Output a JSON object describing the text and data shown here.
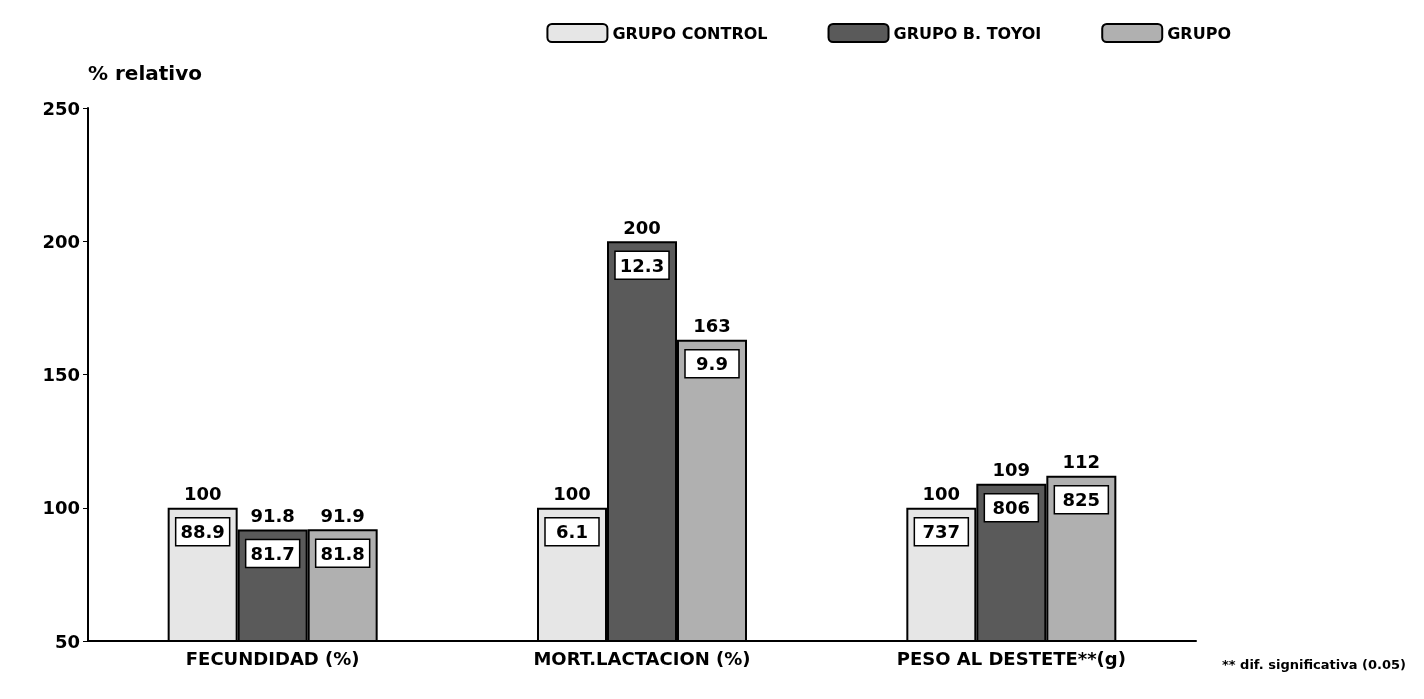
{
  "chart_data": {
    "type": "bar",
    "ylabel": "% relativo",
    "categories": [
      "FECUNDIDAD (%)",
      "MORT.LACTACION (%)",
      "PESO AL DESTETE**(g)"
    ],
    "series": [
      {
        "name": "GRUPO CONTROL",
        "color": "#e6e6e6",
        "values": [
          100,
          100,
          100
        ]
      },
      {
        "name": "GRUPO B. TOYOI",
        "color": "#5a5a5a",
        "values": [
          91.8,
          200,
          109
        ]
      },
      {
        "name": "GRUPO",
        "color": "#b0b0b0",
        "values": [
          91.9,
          163,
          112
        ]
      }
    ],
    "ylim": [
      50,
      250
    ],
    "yticks": [
      50,
      100,
      150,
      200,
      250
    ],
    "grid": false,
    "legend": "top right",
    "data_labels": true,
    "annotations": [
      "88.9",
      "81.7",
      "81.8",
      "6.1",
      "12.3",
      "9.9",
      "737",
      "806",
      "825",
      "** dif. significativa (0.05)"
    ]
  }
}
